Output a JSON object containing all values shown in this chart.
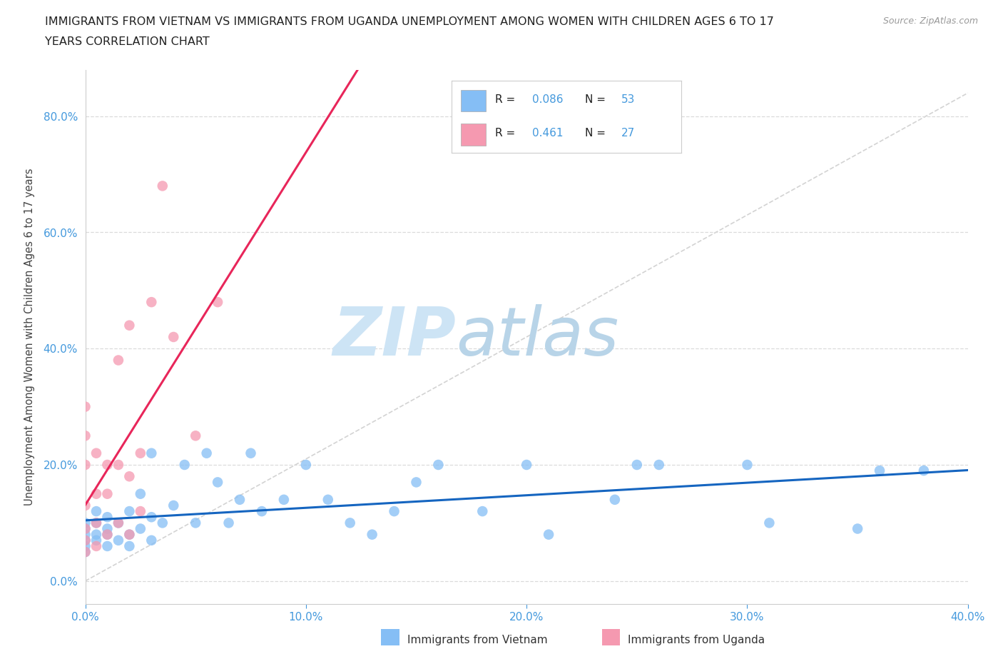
{
  "title_line1": "IMMIGRANTS FROM VIETNAM VS IMMIGRANTS FROM UGANDA UNEMPLOYMENT AMONG WOMEN WITH CHILDREN AGES 6 TO 17",
  "title_line2": "YEARS CORRELATION CHART",
  "source": "Source: ZipAtlas.com",
  "ylabel": "Unemployment Among Women with Children Ages 6 to 17 years",
  "xlim": [
    0.0,
    0.4
  ],
  "ylim": [
    -0.04,
    0.88
  ],
  "xticks": [
    0.0,
    0.1,
    0.2,
    0.3,
    0.4
  ],
  "xtick_labels": [
    "0.0%",
    "10.0%",
    "20.0%",
    "30.0%",
    "40.0%"
  ],
  "ytick_labels": [
    "0.0%",
    "20.0%",
    "40.0%",
    "60.0%",
    "80.0%"
  ],
  "ytick_values": [
    0.0,
    0.2,
    0.4,
    0.6,
    0.8
  ],
  "legend_labels": [
    "Immigrants from Vietnam",
    "Immigrants from Uganda"
  ],
  "R_vietnam": 0.086,
  "N_vietnam": 53,
  "R_uganda": 0.461,
  "N_uganda": 27,
  "color_vietnam": "#85bef5",
  "color_uganda": "#f599b0",
  "line_color_vietnam": "#1565c0",
  "line_color_uganda": "#e8265a",
  "diag_line_color": "#c8c8c8",
  "grid_color": "#d8d8d8",
  "background_color": "#ffffff",
  "watermark_zip": "ZIP",
  "watermark_atlas": "atlas",
  "watermark_color_zip": "#cde4f5",
  "watermark_color_atlas": "#b8d4e8",
  "tick_color": "#4499dd",
  "spine_color": "#cccccc",
  "title_color": "#222222",
  "source_color": "#999999",
  "ylabel_color": "#444444",
  "vietnam_x": [
    0.0,
    0.0,
    0.0,
    0.0,
    0.0,
    0.0,
    0.005,
    0.005,
    0.005,
    0.005,
    0.01,
    0.01,
    0.01,
    0.01,
    0.015,
    0.015,
    0.02,
    0.02,
    0.02,
    0.025,
    0.025,
    0.03,
    0.03,
    0.03,
    0.035,
    0.04,
    0.045,
    0.05,
    0.055,
    0.06,
    0.065,
    0.07,
    0.075,
    0.08,
    0.09,
    0.1,
    0.11,
    0.12,
    0.13,
    0.14,
    0.15,
    0.16,
    0.18,
    0.2,
    0.21,
    0.24,
    0.25,
    0.26,
    0.3,
    0.31,
    0.35,
    0.36,
    0.38
  ],
  "vietnam_y": [
    0.08,
    0.1,
    0.05,
    0.07,
    0.09,
    0.06,
    0.08,
    0.1,
    0.07,
    0.12,
    0.09,
    0.06,
    0.11,
    0.08,
    0.1,
    0.07,
    0.12,
    0.08,
    0.06,
    0.15,
    0.09,
    0.11,
    0.07,
    0.22,
    0.1,
    0.13,
    0.2,
    0.1,
    0.22,
    0.17,
    0.1,
    0.14,
    0.22,
    0.12,
    0.14,
    0.2,
    0.14,
    0.1,
    0.08,
    0.12,
    0.17,
    0.2,
    0.12,
    0.2,
    0.08,
    0.14,
    0.2,
    0.2,
    0.2,
    0.1,
    0.09,
    0.19,
    0.19
  ],
  "uganda_x": [
    0.0,
    0.0,
    0.0,
    0.0,
    0.0,
    0.0,
    0.0,
    0.005,
    0.005,
    0.005,
    0.005,
    0.01,
    0.01,
    0.01,
    0.015,
    0.015,
    0.015,
    0.02,
    0.02,
    0.02,
    0.025,
    0.025,
    0.03,
    0.035,
    0.04,
    0.05,
    0.06
  ],
  "uganda_y": [
    0.05,
    0.07,
    0.09,
    0.13,
    0.2,
    0.25,
    0.3,
    0.06,
    0.1,
    0.15,
    0.22,
    0.08,
    0.15,
    0.2,
    0.1,
    0.2,
    0.38,
    0.08,
    0.18,
    0.44,
    0.12,
    0.22,
    0.48,
    0.68,
    0.42,
    0.25,
    0.48
  ]
}
